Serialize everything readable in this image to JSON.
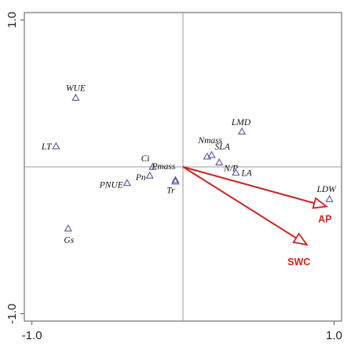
{
  "chart_data": {
    "type": "scatter",
    "title": "",
    "xlabel": "",
    "ylabel": "",
    "xlim": [
      -1.05,
      1.05
    ],
    "ylim": [
      -1.05,
      1.05
    ],
    "x_ticks": [
      -1.0,
      1.0
    ],
    "x_tick_labels": [
      "-1.0",
      "1.0"
    ],
    "y_ticks": [
      -1.0,
      1.0
    ],
    "y_tick_labels": [
      "-1.0",
      "1.0"
    ],
    "grid": false,
    "reference_lines": [
      0,
      0
    ],
    "colors": {
      "points": "#5a5a9a",
      "arrows": "#cc2222",
      "arrow_labels": "#cc2222",
      "axes": "#555555",
      "crosshair": "#999999"
    },
    "points": [
      {
        "label": "WUE",
        "x": -0.71,
        "y": 0.47
      },
      {
        "label": "LT",
        "x": -0.84,
        "y": 0.14
      },
      {
        "label": "Ci",
        "x": -0.2,
        "y": 0.0
      },
      {
        "label": "Pn",
        "x": -0.22,
        "y": -0.06
      },
      {
        "label": "Pmass",
        "x": -0.05,
        "y": -0.09
      },
      {
        "label": "PNUE",
        "x": -0.37,
        "y": -0.11
      },
      {
        "label": "Tr",
        "x": -0.05,
        "y": -0.1
      },
      {
        "label": "Gs",
        "x": -0.76,
        "y": -0.42
      },
      {
        "label": "LMD",
        "x": 0.39,
        "y": 0.24
      },
      {
        "label": "Nmass",
        "x": 0.16,
        "y": 0.07
      },
      {
        "label": "SLA",
        "x": 0.19,
        "y": 0.08
      },
      {
        "label": "N/P",
        "x": 0.24,
        "y": 0.03
      },
      {
        "label": "LA",
        "x": 0.35,
        "y": -0.04
      },
      {
        "label": "LDW",
        "x": 0.97,
        "y": -0.22
      }
    ],
    "arrows": [
      {
        "label": "AP",
        "x": 0.95,
        "y": -0.27
      },
      {
        "label": "SWC",
        "x": 0.82,
        "y": -0.53
      }
    ]
  }
}
